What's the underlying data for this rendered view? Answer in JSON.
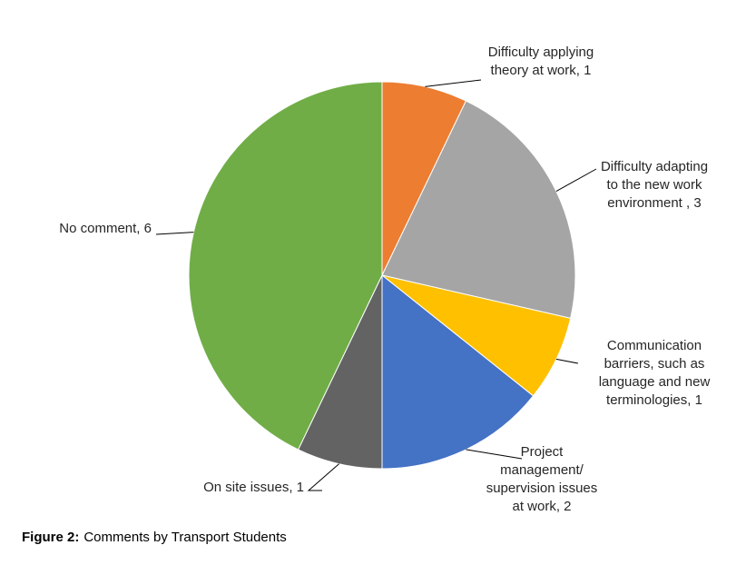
{
  "chart_data": {
    "type": "pie",
    "categories": [
      "Difficulty applying theory at work, 1",
      "Difficulty adapting to the new work environment , 3",
      "Communication barriers, such as language and new terminologies, 1",
      "Project management/ supervision issues at work, 2",
      "On site issues, 1",
      "No comment, 6"
    ],
    "values": [
      1,
      3,
      1,
      2,
      1,
      6
    ],
    "colors": [
      "#ED7D31",
      "#A5A5A5",
      "#FFC000",
      "#4472C4",
      "#636363",
      "#70AD47"
    ],
    "caption": {
      "label": "Figure 2:",
      "text": "Comments by Transport Students"
    }
  }
}
